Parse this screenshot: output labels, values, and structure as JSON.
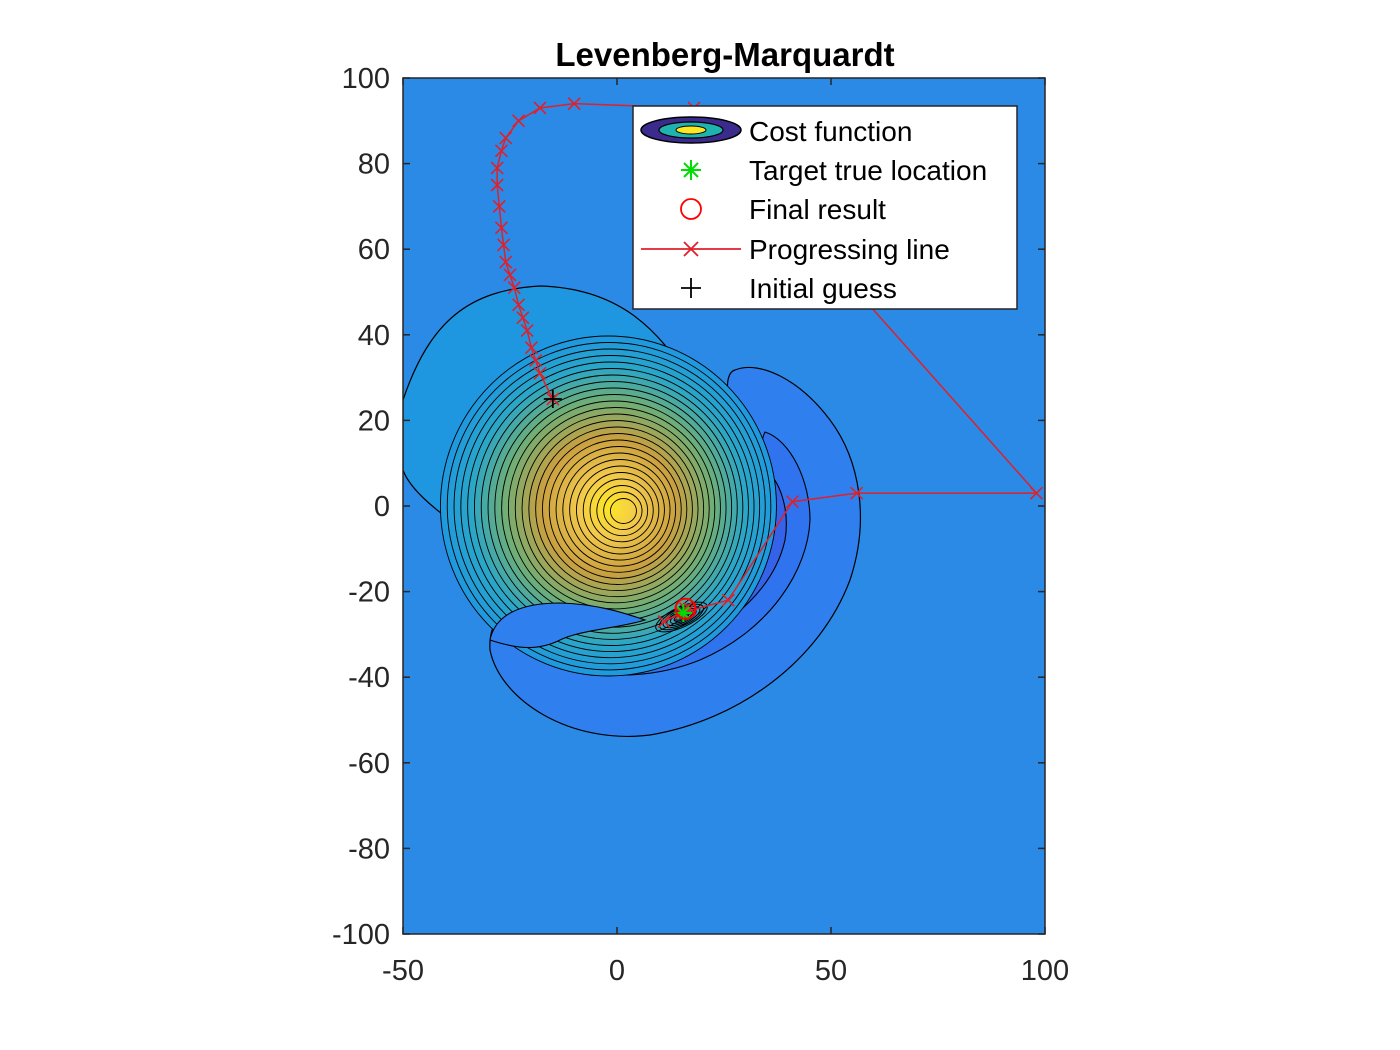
{
  "chart_data": {
    "type": "contour",
    "title": "Levenberg-Marquardt",
    "xlabel": "",
    "ylabel": "",
    "xlim": [
      -50,
      100
    ],
    "ylim": [
      -100,
      100
    ],
    "xticks": [
      "-50",
      "0",
      "50",
      "100"
    ],
    "yticks": [
      "100",
      "80",
      "60",
      "40",
      "20",
      "0",
      "-20",
      "-40",
      "-60",
      "-80",
      "-100"
    ],
    "grid": false,
    "legend_position": "top-right",
    "legend": [
      {
        "key": "cost",
        "label": "Cost function",
        "marker": "filled-contour"
      },
      {
        "key": "target",
        "label": "Target true location",
        "marker": "asterisk",
        "color": "#00dd00"
      },
      {
        "key": "final",
        "label": "Final result",
        "marker": "circle",
        "color": "#ff0000"
      },
      {
        "key": "progress",
        "label": "Progressing line",
        "marker": "x-line",
        "color": "#ff0000"
      },
      {
        "key": "initial",
        "label": "Initial guess",
        "marker": "plus",
        "color": "#000000"
      }
    ],
    "colors": {
      "background": "#2b8ae6",
      "contour_line": "#000000",
      "progress_line": "#e0202a"
    },
    "cost_function": {
      "peak_center": [
        -2,
        0
      ],
      "trough_center": [
        16,
        -25
      ]
    },
    "target_true_location": {
      "x": 15.5,
      "y": -25
    },
    "final_result": {
      "x": 16,
      "y": -24
    },
    "initial_guess": {
      "x": -15,
      "y": 25
    },
    "progressing_line": {
      "x": [
        -15,
        -18,
        -19,
        -20,
        -21,
        -22,
        -23,
        -24,
        -25,
        -26,
        -26.5,
        -27,
        -27.5,
        -28,
        -28,
        -27,
        -26,
        -23,
        -18,
        -10,
        18,
        98,
        56,
        41,
        26,
        15,
        11,
        17,
        16
      ],
      "y": [
        25,
        31,
        34,
        37,
        41,
        44,
        47,
        51,
        54,
        57,
        61,
        65,
        70,
        75,
        79,
        83,
        86,
        90,
        93,
        94,
        93,
        3,
        3,
        1,
        -22,
        -25,
        -27,
        -24,
        -24
      ]
    }
  }
}
